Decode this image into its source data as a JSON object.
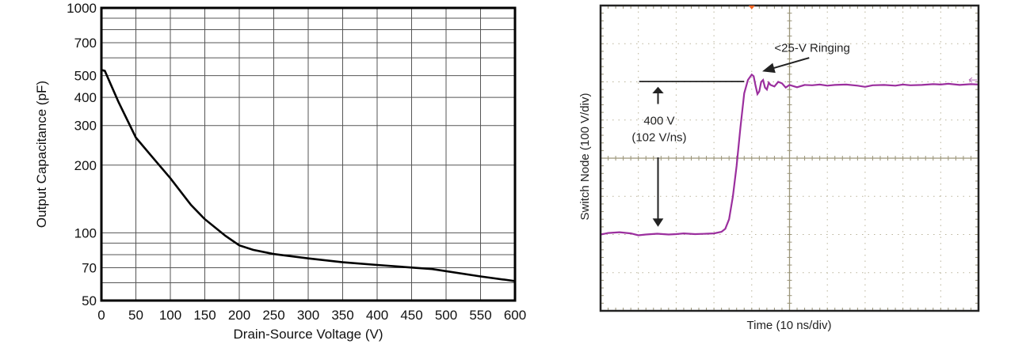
{
  "chart_data": [
    {
      "type": "line",
      "xlabel": "Drain-Source Voltage (V)",
      "ylabel": "Output Capacitance (pF)",
      "xlim": [
        0,
        600
      ],
      "ylim": [
        50,
        1000
      ],
      "yscale": "log",
      "grid": true,
      "xticks": [
        0,
        50,
        100,
        150,
        200,
        250,
        300,
        350,
        400,
        450,
        500,
        550,
        600
      ],
      "yticks": [
        1000,
        700,
        500,
        400,
        300,
        200,
        100,
        70,
        50
      ],
      "ygrid": [
        1000,
        900,
        800,
        700,
        600,
        500,
        400,
        300,
        200,
        100,
        90,
        80,
        70,
        60,
        50
      ],
      "line_color": "#000000",
      "x": [
        0,
        5,
        25,
        50,
        75,
        100,
        130,
        150,
        180,
        200,
        220,
        250,
        300,
        350,
        400,
        480,
        550,
        600
      ],
      "y": [
        530,
        525,
        380,
        265,
        215,
        175,
        133,
        115,
        97,
        88,
        84,
        80.5,
        77,
        74,
        72,
        69,
        64,
        61
      ]
    },
    {
      "type": "line",
      "xlabel": "Time (10 ns/div)",
      "ylabel": "Switch Node (100 V/div)",
      "x_units": "ns",
      "y_units": "V",
      "xlim": [
        0,
        100
      ],
      "ylim": [
        -400,
        400
      ],
      "x_divisions": 10,
      "y_divisions": 8,
      "grid": true,
      "trace_color": "#9b2f9e",
      "trigger_marker_color": "#f26522",
      "x": [
        0,
        2,
        5,
        8,
        10,
        12,
        15,
        18,
        20,
        22,
        25,
        28,
        30,
        32,
        33,
        34,
        35,
        36,
        37,
        38,
        39,
        40,
        40.5,
        41,
        41.5,
        42,
        42.5,
        43,
        43.5,
        44,
        44.5,
        45,
        46,
        47,
        48,
        49,
        50,
        52,
        54,
        56,
        58,
        60,
        62,
        65,
        68,
        70,
        72,
        75,
        78,
        80,
        82,
        85,
        88,
        90,
        92,
        95,
        98,
        100
      ],
      "y": [
        -200,
        -196,
        -194,
        -197,
        -202,
        -200,
        -198,
        -200,
        -199,
        -197,
        -199,
        -198,
        -197,
        -193,
        -185,
        -160,
        -100,
        -20,
        80,
        170,
        205,
        219,
        215,
        190,
        168,
        175,
        200,
        205,
        185,
        180,
        198,
        192,
        188,
        200,
        196,
        185,
        192,
        186,
        192,
        191,
        193,
        190,
        192,
        193,
        190,
        187,
        191,
        192,
        190,
        193,
        191,
        192,
        194,
        193,
        195,
        192,
        194,
        193
      ],
      "annotations": {
        "swing": "400 V",
        "slew": "(102 V/ns)",
        "ringing": "<25-V Ringing"
      }
    }
  ]
}
